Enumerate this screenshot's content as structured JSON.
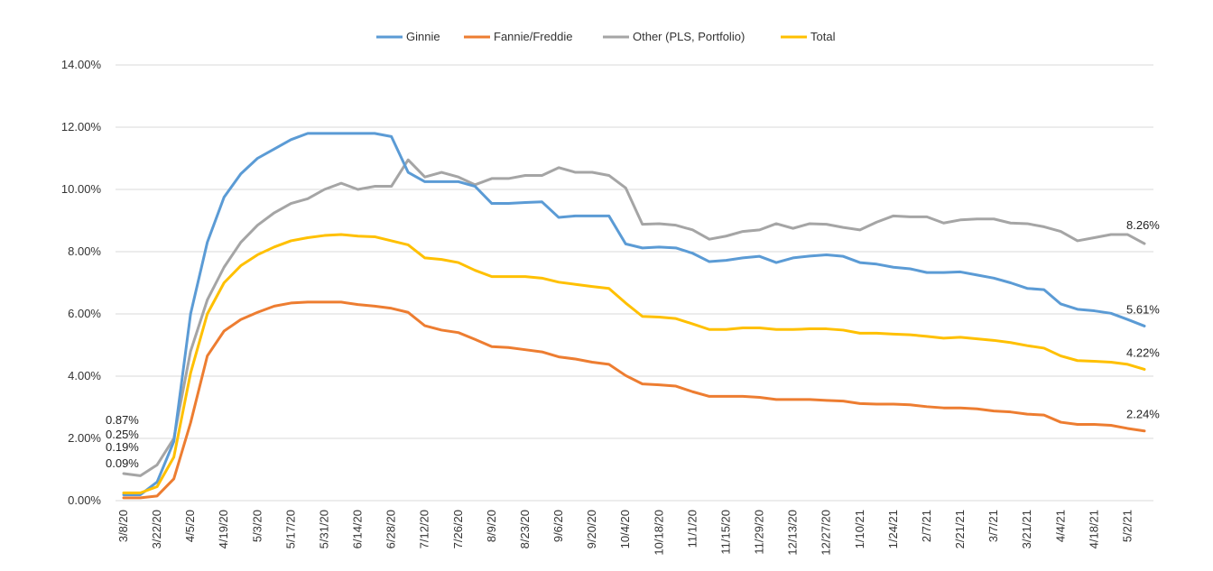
{
  "chart_data": {
    "type": "line",
    "title": "",
    "xlabel": "",
    "ylabel": "",
    "ylim": [
      0,
      14
    ],
    "y_ticks": [
      "0.00%",
      "2.00%",
      "4.00%",
      "6.00%",
      "8.00%",
      "10.00%",
      "12.00%",
      "14.00%"
    ],
    "grid": "horizontal",
    "legend_position": "top",
    "x_tick_labels": [
      "3/8/20",
      "3/22/20",
      "4/5/20",
      "4/19/20",
      "5/3/20",
      "5/17/20",
      "5/31/20",
      "6/14/20",
      "6/28/20",
      "7/12/20",
      "7/26/20",
      "8/9/20",
      "8/23/20",
      "9/6/20",
      "9/20/20",
      "10/4/20",
      "10/18/20",
      "11/1/20",
      "11/15/20",
      "11/29/20",
      "12/13/20",
      "12/27/20",
      "1/10/21",
      "1/24/21",
      "2/7/21",
      "2/21/21",
      "3/7/21",
      "3/21/21",
      "4/4/21",
      "4/18/21",
      "5/2/21"
    ],
    "series": [
      {
        "name": "Ginnie",
        "color": "#5b9bd5",
        "values": [
          0.19,
          0.19,
          0.6,
          1.9,
          6.0,
          8.3,
          9.75,
          10.5,
          11.0,
          11.3,
          11.6,
          11.8,
          11.8,
          11.8,
          11.8,
          11.8,
          11.7,
          10.55,
          10.25,
          10.25,
          10.25,
          10.1,
          9.55,
          9.55,
          9.58,
          9.6,
          9.1,
          9.15,
          9.15,
          9.15,
          8.25,
          8.12,
          8.15,
          8.12,
          7.95,
          7.68,
          7.72,
          7.8,
          7.85,
          7.65,
          7.8,
          7.86,
          7.9,
          7.85,
          7.65,
          7.6,
          7.5,
          7.45,
          7.33,
          7.33,
          7.35,
          7.25,
          7.15,
          7.0,
          6.82,
          6.78,
          6.32,
          6.15,
          6.1,
          6.02,
          5.82,
          5.61
        ],
        "end_label": "5.61%",
        "start_label": "0.19%"
      },
      {
        "name": "Fannie/Freddie",
        "color": "#ed7d31",
        "values": [
          0.09,
          0.09,
          0.15,
          0.7,
          2.5,
          4.65,
          5.45,
          5.82,
          6.05,
          6.25,
          6.35,
          6.38,
          6.38,
          6.38,
          6.3,
          6.25,
          6.18,
          6.05,
          5.62,
          5.48,
          5.4,
          5.18,
          4.95,
          4.92,
          4.85,
          4.78,
          4.62,
          4.55,
          4.45,
          4.38,
          4.02,
          3.75,
          3.72,
          3.68,
          3.5,
          3.35,
          3.35,
          3.35,
          3.32,
          3.25,
          3.25,
          3.25,
          3.22,
          3.2,
          3.12,
          3.1,
          3.1,
          3.08,
          3.02,
          2.98,
          2.98,
          2.95,
          2.88,
          2.85,
          2.78,
          2.75,
          2.52,
          2.45,
          2.45,
          2.42,
          2.32,
          2.24
        ],
        "end_label": "2.24%",
        "start_label": "0.09%"
      },
      {
        "name": "Other (PLS, Portfolio)",
        "color": "#a5a5a5",
        "values": [
          0.87,
          0.8,
          1.15,
          2.0,
          4.8,
          6.45,
          7.5,
          8.3,
          8.85,
          9.25,
          9.55,
          9.7,
          10.0,
          10.2,
          10.0,
          10.1,
          10.1,
          10.95,
          10.4,
          10.55,
          10.4,
          10.15,
          10.35,
          10.35,
          10.45,
          10.45,
          10.7,
          10.55,
          10.55,
          10.45,
          10.05,
          8.88,
          8.9,
          8.85,
          8.7,
          8.4,
          8.5,
          8.65,
          8.7,
          8.9,
          8.75,
          8.9,
          8.88,
          8.78,
          8.7,
          8.95,
          9.15,
          9.12,
          9.12,
          8.92,
          9.02,
          9.05,
          9.05,
          8.92,
          8.9,
          8.8,
          8.65,
          8.35,
          8.45,
          8.55,
          8.55,
          8.26
        ],
        "end_label": "8.26%",
        "start_label": "0.87%"
      },
      {
        "name": "Total",
        "color": "#ffc000",
        "values": [
          0.25,
          0.25,
          0.45,
          1.4,
          4.1,
          6.0,
          7.0,
          7.55,
          7.9,
          8.15,
          8.35,
          8.45,
          8.52,
          8.55,
          8.5,
          8.48,
          8.35,
          8.22,
          7.8,
          7.75,
          7.65,
          7.4,
          7.2,
          7.2,
          7.2,
          7.15,
          7.02,
          6.95,
          6.88,
          6.82,
          6.35,
          5.92,
          5.9,
          5.85,
          5.68,
          5.5,
          5.5,
          5.55,
          5.55,
          5.5,
          5.5,
          5.52,
          5.52,
          5.48,
          5.38,
          5.38,
          5.35,
          5.33,
          5.28,
          5.22,
          5.25,
          5.2,
          5.15,
          5.08,
          4.98,
          4.9,
          4.65,
          4.5,
          4.48,
          4.45,
          4.38,
          4.22
        ],
        "end_label": "4.22%",
        "start_label": "0.25%"
      }
    ]
  }
}
